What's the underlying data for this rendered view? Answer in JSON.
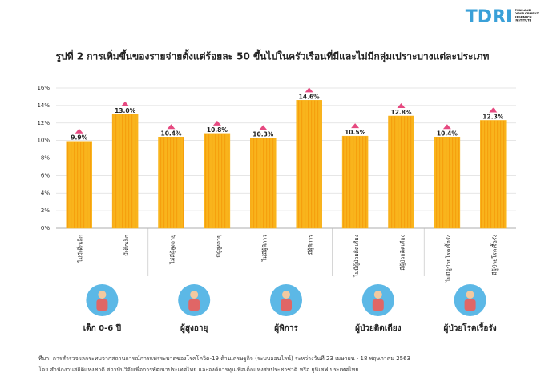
{
  "logo": {
    "title": "TDRI",
    "subtitle": [
      "THAILAND",
      "DEVELOPMENT",
      "RESEARCH",
      "INSTITUTE"
    ]
  },
  "chart_data": {
    "type": "bar",
    "title": "รูปที่ 2 การเพิ่มขึ้นของรายจ่ายตั้งแต่ร้อยละ 50 ขึ้นไปในครัวเรือนที่มีและไม่มีกลุ่มเปราะบางแต่ละประเภท",
    "categories": [
      "ไม่มีเด็กเล็ก",
      "มีเด็กเล็ก",
      "ไม่มีผู้สูงอายุ",
      "มีผู้สูงอายุ",
      "ไม่มีผู้พิการ",
      "มีผู้พิการ",
      "ไม่มีผู้ป่วยติดเตียง",
      "มีผู้ป่วยติดเตียง",
      "ไม่มีผู้ป่วยโรคเรื้อรัง",
      "มีผู้ป่วยโรคเรื้อรัง"
    ],
    "values": [
      9.9,
      13.0,
      10.4,
      10.8,
      10.3,
      14.6,
      10.5,
      12.8,
      10.4,
      12.3
    ],
    "value_labels": [
      "9.9%",
      "13.0%",
      "10.4%",
      "10.8%",
      "10.3%",
      "14.6%",
      "10.5%",
      "12.8%",
      "10.4%",
      "12.3%"
    ],
    "groups": [
      "เด็ก 0-6 ปี",
      "ผู้สูงอายุ",
      "ผู้พิการ",
      "ผู้ป่วยติดเตียง",
      "ผู้ป่วยโรคเรื้อรัง"
    ],
    "color": "#f9b41c",
    "ylim": [
      0,
      16
    ],
    "yticks": [
      {
        "value": 0,
        "label": "0%"
      },
      {
        "value": 2,
        "label": "2%"
      },
      {
        "value": 4,
        "label": "4%"
      },
      {
        "value": 6,
        "label": "6%"
      },
      {
        "value": 8,
        "label": "8%"
      },
      {
        "value": 10,
        "label": "10%"
      },
      {
        "value": 12,
        "label": "12%"
      },
      {
        "value": 14,
        "label": "14%"
      },
      {
        "value": 16,
        "label": "16%"
      }
    ],
    "grid": true,
    "notes": [
      "ที่มา: การสำรวจผลกระทบจากสถานการณ์การแพร่ระบาดของโรคโควิด-19 ด้านเศรษฐกิจ (ระบบออนไลน์) ระหว่างวันที่ 23 เมษายน - 18 พฤษภาคม 2563",
      "โดย สำนักงานสถิติแห่งชาติ สถาบันวิจัยเพื่อการพัฒนาประเทศไทย และองค์การทุนเพื่อเด็กแห่งสหประชาชาติ หรือ ยูนิเซฟ ประเทศไทย"
    ]
  }
}
